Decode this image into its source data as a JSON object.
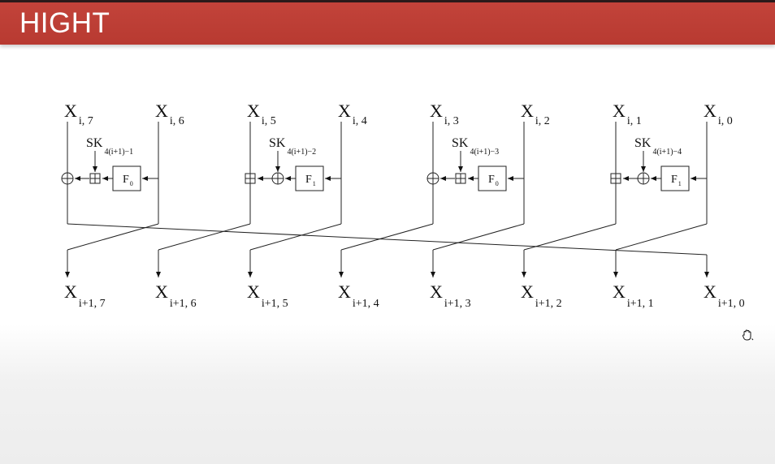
{
  "header": {
    "title": "HIGHT"
  },
  "diagram": {
    "round": [
      {
        "in_hi": {
          "base": "X",
          "sub": "i, 7"
        },
        "in_lo": {
          "base": "X",
          "sub": "i, 6"
        },
        "key": {
          "base": "SK",
          "sub": "4(i+1)−1"
        },
        "func": {
          "base": "F",
          "sub": "0"
        },
        "outer_op": "xor",
        "inner_op": "add"
      },
      {
        "in_hi": {
          "base": "X",
          "sub": "i, 5"
        },
        "in_lo": {
          "base": "X",
          "sub": "i, 4"
        },
        "key": {
          "base": "SK",
          "sub": "4(i+1)−2"
        },
        "func": {
          "base": "F",
          "sub": "1"
        },
        "outer_op": "add",
        "inner_op": "xor"
      },
      {
        "in_hi": {
          "base": "X",
          "sub": "i, 3"
        },
        "in_lo": {
          "base": "X",
          "sub": "i, 2"
        },
        "key": {
          "base": "SK",
          "sub": "4(i+1)−3"
        },
        "func": {
          "base": "F",
          "sub": "0"
        },
        "outer_op": "xor",
        "inner_op": "add"
      },
      {
        "in_hi": {
          "base": "X",
          "sub": "i, 1"
        },
        "in_lo": {
          "base": "X",
          "sub": "i, 0"
        },
        "key": {
          "base": "SK",
          "sub": "4(i+1)−4"
        },
        "func": {
          "base": "F",
          "sub": "1"
        },
        "outer_op": "add",
        "inner_op": "xor"
      }
    ],
    "outputs": [
      {
        "base": "X",
        "sub": "i+1, 7"
      },
      {
        "base": "X",
        "sub": "i+1, 6"
      },
      {
        "base": "X",
        "sub": "i+1, 5"
      },
      {
        "base": "X",
        "sub": "i+1, 4"
      },
      {
        "base": "X",
        "sub": "i+1, 3"
      },
      {
        "base": "X",
        "sub": "i+1, 2"
      },
      {
        "base": "X",
        "sub": "i+1, 1"
      },
      {
        "base": "X",
        "sub": "i+1, 0"
      }
    ]
  },
  "cursor": {
    "icon": "hand-cursor-icon"
  }
}
